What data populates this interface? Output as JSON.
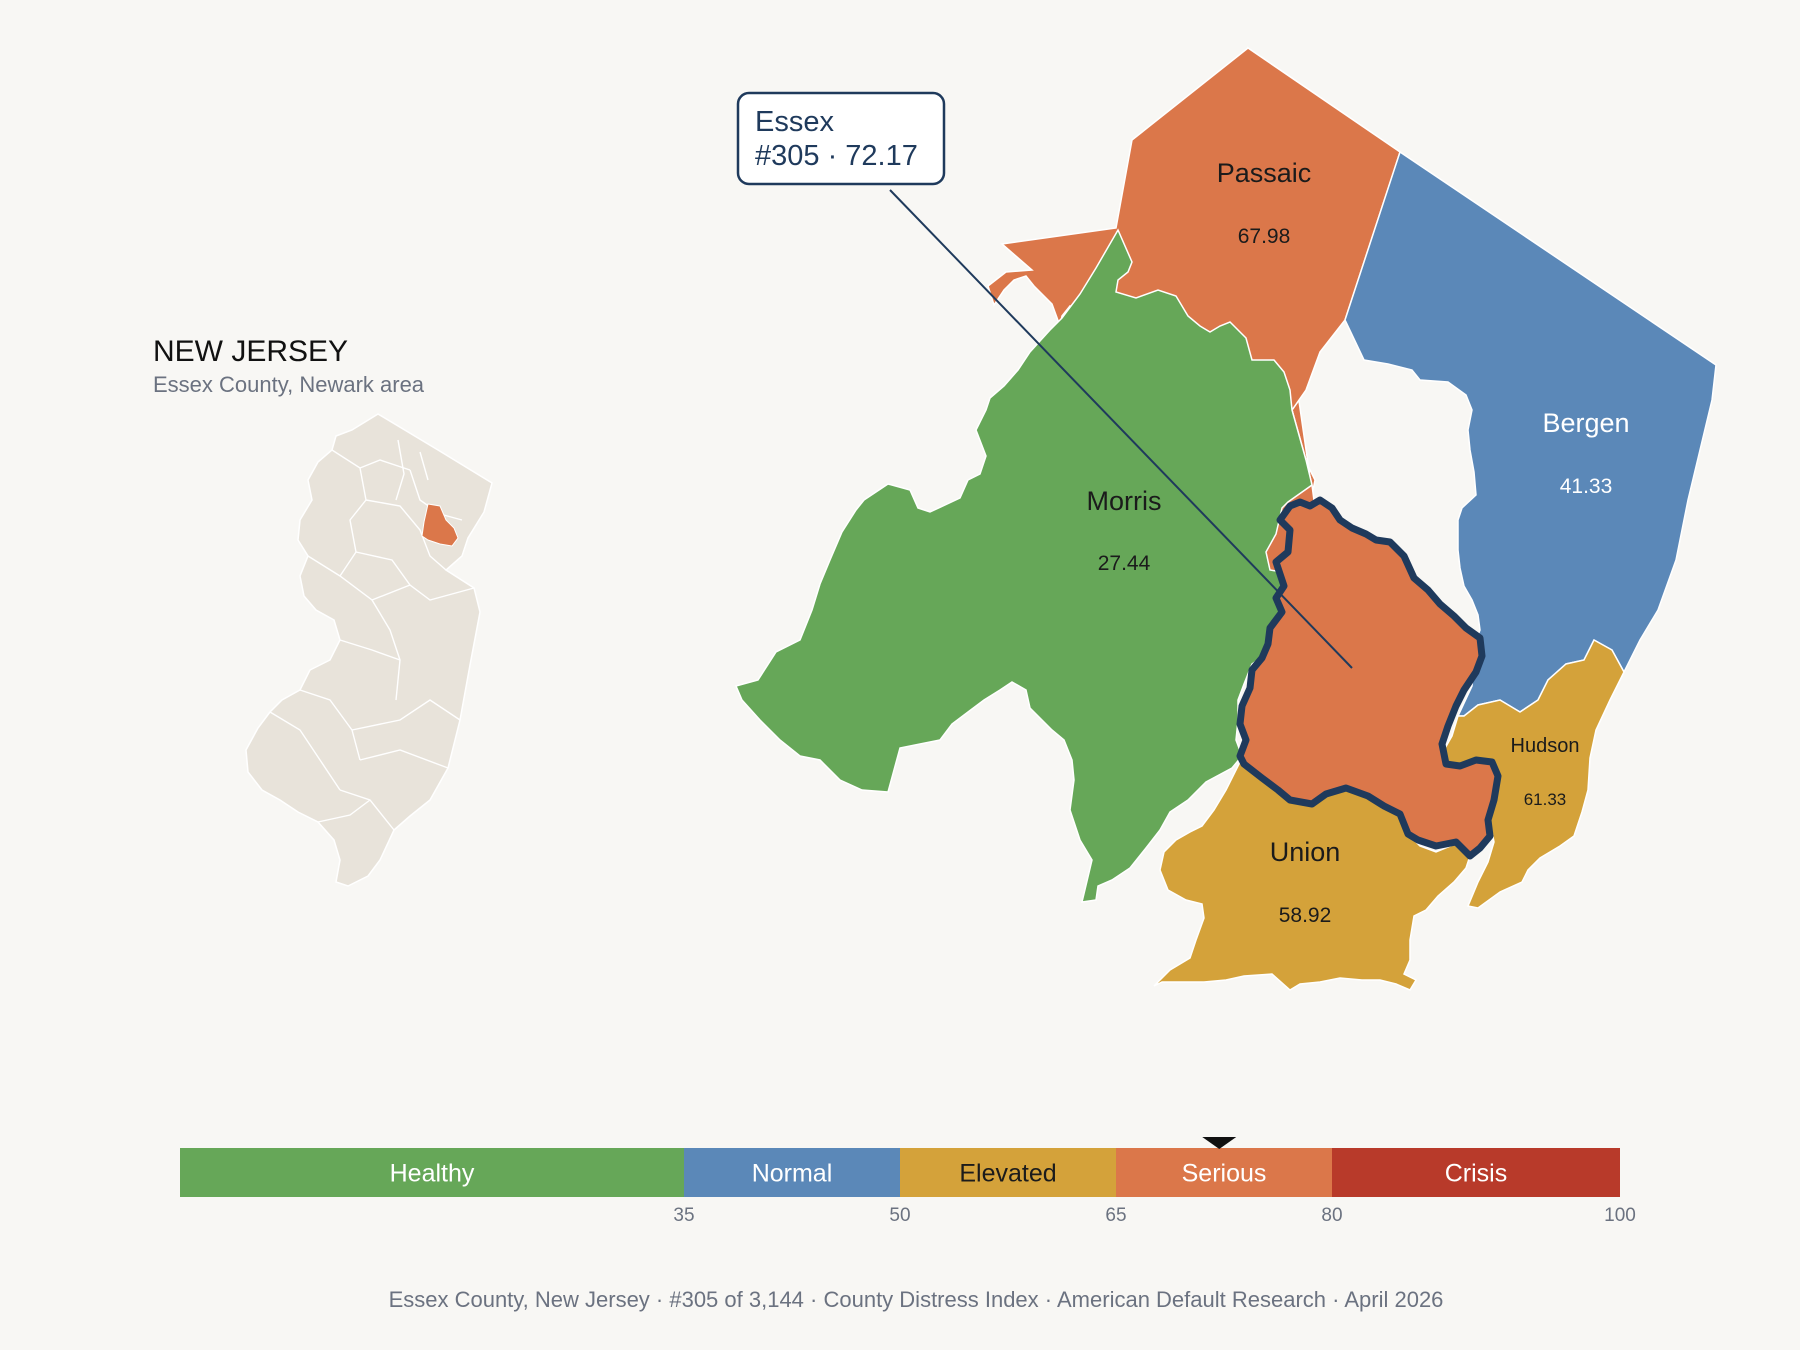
{
  "inset": {
    "state_title": "NEW JERSEY",
    "subtitle": "Essex County, Newark area"
  },
  "callout": {
    "line1": "Essex",
    "line2": "#305 · 72.17"
  },
  "counties": {
    "passaic": {
      "name": "Passaic",
      "value": "67.98"
    },
    "bergen": {
      "name": "Bergen",
      "value": "41.33"
    },
    "morris": {
      "name": "Morris",
      "value": "27.44"
    },
    "hudson": {
      "name": "Hudson",
      "value": "61.33"
    },
    "union": {
      "name": "Union",
      "value": "58.92"
    },
    "essex": {
      "name": "Essex",
      "value": "72.17",
      "rank": "#305"
    }
  },
  "scale": {
    "bands": [
      {
        "label": "Healthy",
        "from": 0,
        "to": 35,
        "color": "#66a758",
        "text_color": "#ffffff"
      },
      {
        "label": "Normal",
        "from": 35,
        "to": 50,
        "color": "#5b88b8",
        "text_color": "#ffffff"
      },
      {
        "label": "Elevated",
        "from": 50,
        "to": 65,
        "color": "#d4a23a",
        "text_color": "#1b1b1b"
      },
      {
        "label": "Serious",
        "from": 65,
        "to": 80,
        "color": "#db774a",
        "text_color": "#ffffff"
      },
      {
        "label": "Crisis",
        "from": 80,
        "to": 100,
        "color": "#b83a2a",
        "text_color": "#ffffff"
      }
    ],
    "ticks": [
      "35",
      "50",
      "65",
      "80",
      "100"
    ],
    "marker_value": 72.17
  },
  "colors": {
    "healthy": "#66a758",
    "normal": "#5b88b8",
    "elevated": "#d4a23a",
    "serious": "#db774a",
    "crisis": "#b83a2a",
    "outline": "#1f3a5c",
    "inset_fill": "#e8e3da"
  },
  "footer": {
    "text": "Essex County, New Jersey  ·  #305 of 3,144  ·  County Distress Index  ·  American Default Research  ·  April 2026"
  }
}
